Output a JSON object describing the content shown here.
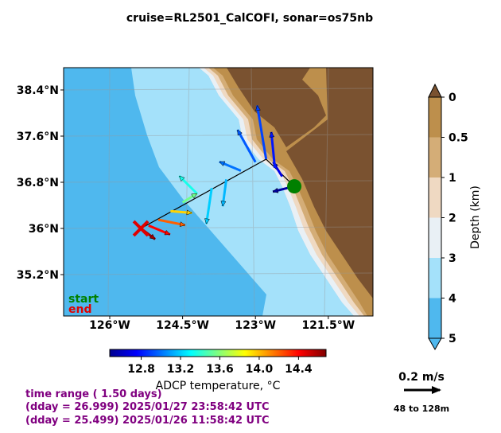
{
  "chart_data": {
    "type": "vector-map",
    "title": "cruise=RL2501_CalCOFI,   sonar=os75nb",
    "xlim": [
      -126.95,
      -120.58
    ],
    "ylim": [
      34.483,
      38.786
    ],
    "xticks": [
      {
        "value": -126,
        "label": "126°W"
      },
      {
        "value": -124.5,
        "label": "124.5°W"
      },
      {
        "value": -123,
        "label": "123°W"
      },
      {
        "value": -121.5,
        "label": "121.5°W"
      }
    ],
    "yticks": [
      {
        "value": 35.2,
        "label": "35.2°N"
      },
      {
        "value": 36,
        "label": "36°N"
      },
      {
        "value": 36.8,
        "label": "36.8°N"
      },
      {
        "value": 37.6,
        "label": "37.6°N"
      },
      {
        "value": 38.4,
        "label": "38.4°N"
      }
    ],
    "track": {
      "lon": [
        -122.2,
        -122.78,
        -125.36
      ],
      "lat": [
        36.73,
        37.2,
        36.0
      ]
    },
    "start_label": "start",
    "end_label": "end",
    "start_color": "#008000",
    "end_color": "#e00000",
    "vectors": {
      "lon": [
        -122.2,
        -122.45,
        -122.6,
        -122.78,
        -123.0,
        -123.3,
        -123.6,
        -123.9,
        -124.2,
        -124.5,
        -124.75,
        -125.0,
        -125.2,
        -125.36
      ],
      "lat": [
        36.73,
        36.9,
        37.05,
        37.2,
        37.15,
        37.0,
        36.85,
        36.7,
        36.6,
        36.45,
        36.3,
        36.15,
        36.05,
        36.0
      ],
      "u": [
        -0.12,
        -0.05,
        -0.02,
        -0.05,
        -0.1,
        -0.12,
        -0.02,
        -0.03,
        -0.1,
        0.08,
        0.12,
        0.15,
        0.12,
        0.08
      ],
      "v": [
        -0.03,
        0.08,
        0.2,
        0.3,
        0.18,
        0.05,
        -0.15,
        -0.2,
        0.1,
        0.05,
        -0.01,
        -0.03,
        -0.05,
        -0.06
      ],
      "temp": [
        12.55,
        12.7,
        12.8,
        12.9,
        12.95,
        13.0,
        13.15,
        13.2,
        13.35,
        13.55,
        13.95,
        14.2,
        14.4,
        14.6
      ]
    },
    "colormap": "jet",
    "clim": [
      12.48,
      14.68
    ],
    "cticks": [
      12.8,
      13.2,
      13.6,
      {
        "value": 14,
        "label": "14.0"
      },
      14.4
    ],
    "clabel": "ADCP temperature, °C",
    "depth_ticks": [
      0,
      0.5,
      1,
      2,
      3,
      4,
      5
    ],
    "depth_colors": [
      "#bd8f4c",
      "#d4ad77",
      "#efd9c2",
      "#e9f0f5",
      "#a4e1fa",
      "#4fb8ee"
    ],
    "depth_label": "Depth (km)",
    "key_speed": 0.2,
    "key_label": "0.2 m/s",
    "depth_range": "48 to 128m",
    "notes": [
      "time range ( 1.50 days)",
      "(dday = 26.999) 2025/01/27 23:58:42 UTC",
      "(dday = 25.499) 2025/01/26 11:58:42 UTC"
    ]
  }
}
